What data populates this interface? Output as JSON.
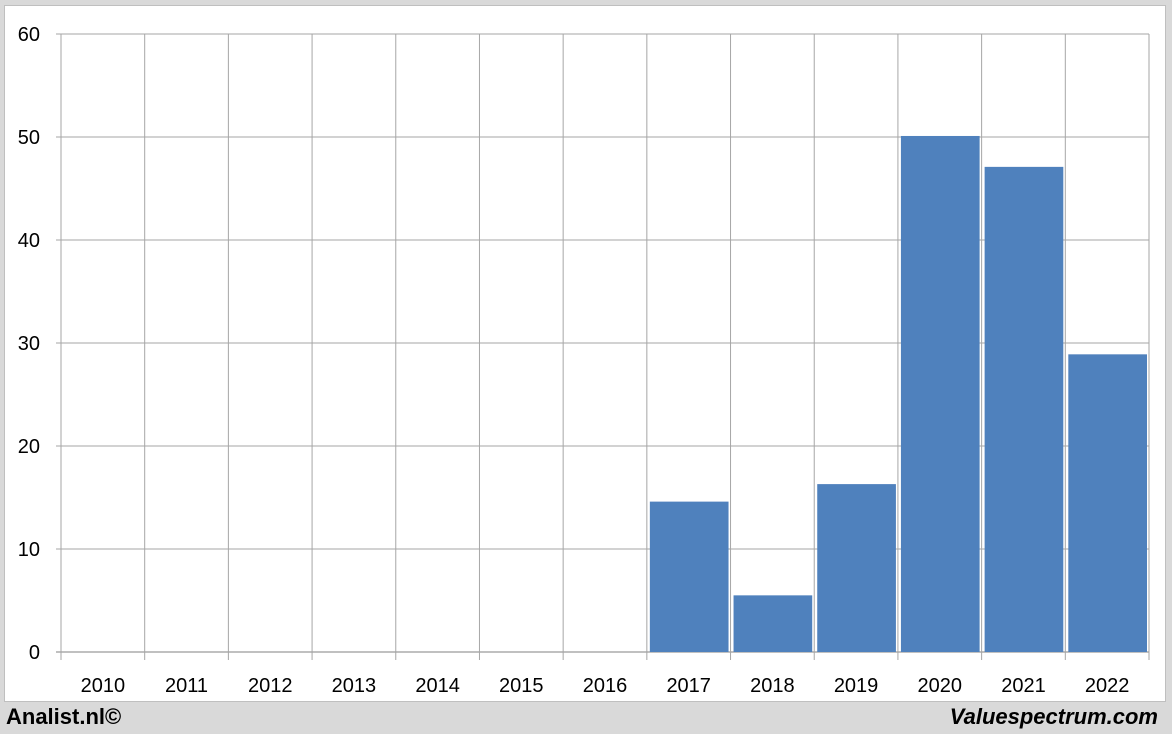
{
  "chart_data": {
    "type": "bar",
    "categories": [
      "2010",
      "2011",
      "2012",
      "2013",
      "2014",
      "2015",
      "2016",
      "2017",
      "2018",
      "2019",
      "2020",
      "2021",
      "2022"
    ],
    "values": [
      null,
      null,
      null,
      null,
      null,
      null,
      null,
      14.6,
      5.5,
      16.3,
      50.1,
      47.1,
      28.9
    ],
    "ylim": [
      0,
      60
    ],
    "yticks": [
      0,
      10,
      20,
      30,
      40,
      50,
      60
    ],
    "grid": true,
    "bar_color": "#4f81bd",
    "title": "",
    "xlabel": "",
    "ylabel": ""
  },
  "footer": {
    "left": "Analist.nl©",
    "right": "Valuespectrum.com"
  }
}
